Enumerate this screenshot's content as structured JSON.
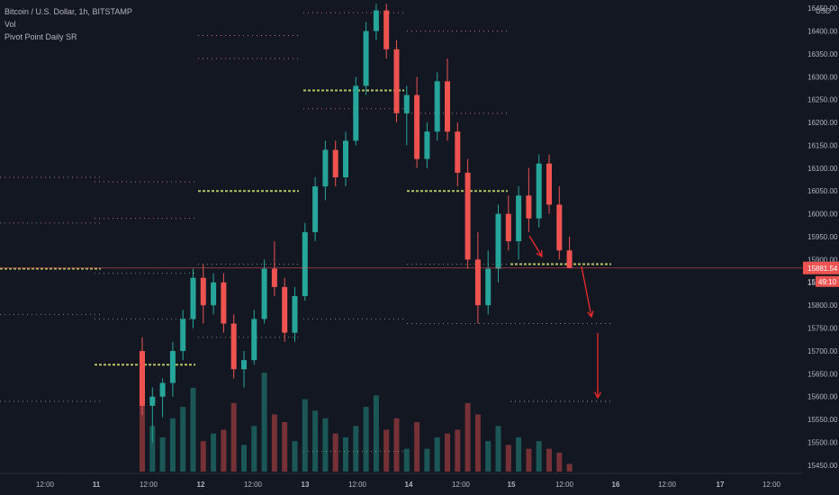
{
  "header": {
    "symbol_line": "Bitcoin / U.S. Dollar, 1h, BITSTAMP",
    "vol_label": "Vol",
    "indicator_label": "Pivot Point Daily SR"
  },
  "colors": {
    "background": "#131722",
    "up": "#26a69a",
    "down": "#ef5350",
    "axis_text": "#b2b5be",
    "pivot_main": "#c6d66a",
    "pivot_resistance": "#c77a6f",
    "pivot_support": "#7b9a78",
    "arrow": "#ef2a2a",
    "current_price_line": "#ef5350"
  },
  "chart_data": {
    "type": "candlestick",
    "title": "Bitcoin / U.S. Dollar, 1h, BITSTAMP",
    "timeframe": "1h",
    "y_axis": {
      "unit_label": "USD",
      "range": [
        15440,
        16460
      ],
      "tick_labels": [
        "16450.00",
        "16400.00",
        "16350.00",
        "16300.00",
        "16250.00",
        "16200.00",
        "16150.00",
        "16100.00",
        "16050.00",
        "16000.00",
        "15950.00",
        "15900.00",
        "15850.00",
        "15800.00",
        "15750.00",
        "15700.00",
        "15650.00",
        "15600.00",
        "15550.00",
        "15500.00",
        "15450.00"
      ]
    },
    "x_axis": {
      "tick_labels": [
        "12:00",
        "11",
        "12:00",
        "12",
        "12:00",
        "13",
        "12:00",
        "14",
        "12:00",
        "15",
        "12:00",
        "16",
        "12:00",
        "17",
        "12:00"
      ]
    },
    "current_price": "15881.54",
    "countdown": "49:10",
    "partial_price_label": "15",
    "candles": [
      {
        "o": 15700,
        "h": 15730,
        "l": 15560,
        "c": 15580
      },
      {
        "o": 15580,
        "h": 15620,
        "l": 15500,
        "c": 15600
      },
      {
        "o": 15600,
        "h": 15640,
        "l": 15555,
        "c": 15630
      },
      {
        "o": 15630,
        "h": 15720,
        "l": 15600,
        "c": 15700
      },
      {
        "o": 15700,
        "h": 15790,
        "l": 15680,
        "c": 15770
      },
      {
        "o": 15770,
        "h": 15880,
        "l": 15750,
        "c": 15860
      },
      {
        "o": 15860,
        "h": 15890,
        "l": 15760,
        "c": 15800
      },
      {
        "o": 15800,
        "h": 15870,
        "l": 15780,
        "c": 15850
      },
      {
        "o": 15850,
        "h": 15870,
        "l": 15740,
        "c": 15760
      },
      {
        "o": 15760,
        "h": 15780,
        "l": 15640,
        "c": 15660
      },
      {
        "o": 15660,
        "h": 15700,
        "l": 15620,
        "c": 15680
      },
      {
        "o": 15680,
        "h": 15790,
        "l": 15670,
        "c": 15770
      },
      {
        "o": 15770,
        "h": 15900,
        "l": 15760,
        "c": 15880
      },
      {
        "o": 15880,
        "h": 15940,
        "l": 15820,
        "c": 15840
      },
      {
        "o": 15840,
        "h": 15860,
        "l": 15720,
        "c": 15740
      },
      {
        "o": 15740,
        "h": 15840,
        "l": 15720,
        "c": 15820
      },
      {
        "o": 15820,
        "h": 15980,
        "l": 15810,
        "c": 15960
      },
      {
        "o": 15960,
        "h": 16080,
        "l": 15940,
        "c": 16060
      },
      {
        "o": 16060,
        "h": 16160,
        "l": 16030,
        "c": 16140
      },
      {
        "o": 16140,
        "h": 16160,
        "l": 16060,
        "c": 16080
      },
      {
        "o": 16080,
        "h": 16180,
        "l": 16060,
        "c": 16160
      },
      {
        "o": 16160,
        "h": 16300,
        "l": 16150,
        "c": 16280
      },
      {
        "o": 16280,
        "h": 16420,
        "l": 16260,
        "c": 16400
      },
      {
        "o": 16400,
        "h": 16460,
        "l": 16380,
        "c": 16445
      },
      {
        "o": 16445,
        "h": 16460,
        "l": 16340,
        "c": 16360
      },
      {
        "o": 16360,
        "h": 16380,
        "l": 16200,
        "c": 16220
      },
      {
        "o": 16220,
        "h": 16280,
        "l": 16150,
        "c": 16260
      },
      {
        "o": 16260,
        "h": 16300,
        "l": 16100,
        "c": 16120
      },
      {
        "o": 16120,
        "h": 16200,
        "l": 16100,
        "c": 16180
      },
      {
        "o": 16180,
        "h": 16310,
        "l": 16160,
        "c": 16290
      },
      {
        "o": 16290,
        "h": 16340,
        "l": 16160,
        "c": 16180
      },
      {
        "o": 16180,
        "h": 16200,
        "l": 16060,
        "c": 16090
      },
      {
        "o": 16090,
        "h": 16120,
        "l": 15880,
        "c": 15900
      },
      {
        "o": 15900,
        "h": 15960,
        "l": 15760,
        "c": 15800
      },
      {
        "o": 15800,
        "h": 15920,
        "l": 15780,
        "c": 15880
      },
      {
        "o": 15880,
        "h": 16020,
        "l": 15850,
        "c": 16000
      },
      {
        "o": 16000,
        "h": 16040,
        "l": 15920,
        "c": 15940
      },
      {
        "o": 15940,
        "h": 16060,
        "l": 15900,
        "c": 16040
      },
      {
        "o": 16040,
        "h": 16100,
        "l": 15960,
        "c": 15990
      },
      {
        "o": 15990,
        "h": 16130,
        "l": 15970,
        "c": 16110
      },
      {
        "o": 16110,
        "h": 16130,
        "l": 16000,
        "c": 16020
      },
      {
        "o": 16020,
        "h": 16060,
        "l": 15900,
        "c": 15920
      },
      {
        "o": 15920,
        "h": 15950,
        "l": 15880,
        "c": 15882
      }
    ],
    "volume": [
      {
        "v": 120,
        "dir": "down"
      },
      {
        "v": 60,
        "dir": "up"
      },
      {
        "v": 45,
        "dir": "up"
      },
      {
        "v": 70,
        "dir": "up"
      },
      {
        "v": 85,
        "dir": "up"
      },
      {
        "v": 110,
        "dir": "up"
      },
      {
        "v": 40,
        "dir": "down"
      },
      {
        "v": 50,
        "dir": "up"
      },
      {
        "v": 55,
        "dir": "down"
      },
      {
        "v": 90,
        "dir": "down"
      },
      {
        "v": 35,
        "dir": "up"
      },
      {
        "v": 60,
        "dir": "up"
      },
      {
        "v": 130,
        "dir": "up"
      },
      {
        "v": 75,
        "dir": "down"
      },
      {
        "v": 65,
        "dir": "down"
      },
      {
        "v": 40,
        "dir": "up"
      },
      {
        "v": 95,
        "dir": "up"
      },
      {
        "v": 80,
        "dir": "up"
      },
      {
        "v": 70,
        "dir": "up"
      },
      {
        "v": 50,
        "dir": "down"
      },
      {
        "v": 45,
        "dir": "up"
      },
      {
        "v": 60,
        "dir": "up"
      },
      {
        "v": 85,
        "dir": "up"
      },
      {
        "v": 100,
        "dir": "up"
      },
      {
        "v": 55,
        "dir": "down"
      },
      {
        "v": 70,
        "dir": "down"
      },
      {
        "v": 30,
        "dir": "up"
      },
      {
        "v": 65,
        "dir": "down"
      },
      {
        "v": 30,
        "dir": "up"
      },
      {
        "v": 45,
        "dir": "up"
      },
      {
        "v": 50,
        "dir": "down"
      },
      {
        "v": 55,
        "dir": "down"
      },
      {
        "v": 90,
        "dir": "down"
      },
      {
        "v": 75,
        "dir": "down"
      },
      {
        "v": 40,
        "dir": "up"
      },
      {
        "v": 60,
        "dir": "up"
      },
      {
        "v": 35,
        "dir": "down"
      },
      {
        "v": 45,
        "dir": "up"
      },
      {
        "v": 30,
        "dir": "down"
      },
      {
        "v": 40,
        "dir": "up"
      },
      {
        "v": 30,
        "dir": "down"
      },
      {
        "v": 25,
        "dir": "down"
      },
      {
        "v": 10,
        "dir": "down"
      }
    ],
    "pivot_levels": [
      {
        "day": "10",
        "p": 15880,
        "r1": 16080,
        "r2": 15980,
        "s1": 15780,
        "s2": 15590
      },
      {
        "day": "11",
        "p": 15670,
        "r1": 16070,
        "r2": 15990,
        "s1": 15870,
        "s2": 15770
      },
      {
        "day": "12",
        "p": 16050,
        "r1": 16390,
        "r2": 16340,
        "s1": 15890,
        "s2": 15730
      },
      {
        "day": "13",
        "p": 16270,
        "r1": 16440,
        "r2": 16230,
        "s1": 15770,
        "s2": 15480
      },
      {
        "day": "14",
        "p": 16050,
        "r1": 16400,
        "r2": 16220,
        "s1": 15890,
        "s2": 15760
      },
      {
        "day": "15",
        "p": 15890,
        "r1": 15760,
        "r2": 15590,
        "s1": 15760,
        "s2": 15590
      }
    ]
  }
}
